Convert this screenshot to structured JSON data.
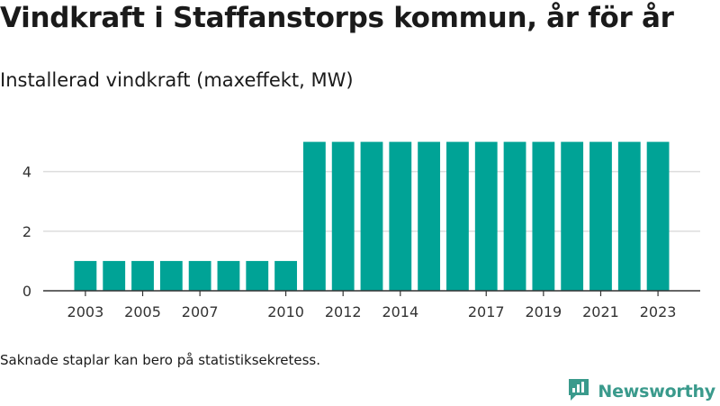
{
  "header": {
    "title": "Vindkraft i Staffanstorps kommun, år för år",
    "subtitle": "Installerad vindkraft (maxeffekt, MW)"
  },
  "footer": {
    "note": "Saknade staplar kan bero på statistiksekretess.",
    "brand": "Newsworthy",
    "brand_icon": "newsworthy-logo-icon"
  },
  "colors": {
    "bar": "#00a396",
    "grid": "#dddddd",
    "axis": "#333333",
    "brand": "#3a9a8c"
  },
  "chart_data": {
    "type": "bar",
    "title": "",
    "xlabel": "",
    "ylabel": "",
    "categories": [
      "2003",
      "2004",
      "2005",
      "2006",
      "2007",
      "2008",
      "2009",
      "2010",
      "2011",
      "2012",
      "2013",
      "2014",
      "2015",
      "2016",
      "2017",
      "2018",
      "2019",
      "2020",
      "2021",
      "2022",
      "2023"
    ],
    "values": [
      1,
      1,
      1,
      1,
      1,
      1,
      1,
      1,
      5,
      5,
      5,
      5,
      5,
      5,
      5,
      5,
      5,
      5,
      5,
      5,
      5
    ],
    "xtick_labels": [
      "2003",
      "2005",
      "2007",
      "2010",
      "2012",
      "2014",
      "2017",
      "2019",
      "2021",
      "2023"
    ],
    "yticks": [
      0,
      2,
      4
    ],
    "ylim": [
      0,
      5.35
    ],
    "grid": "horizontal",
    "legend": "none"
  }
}
